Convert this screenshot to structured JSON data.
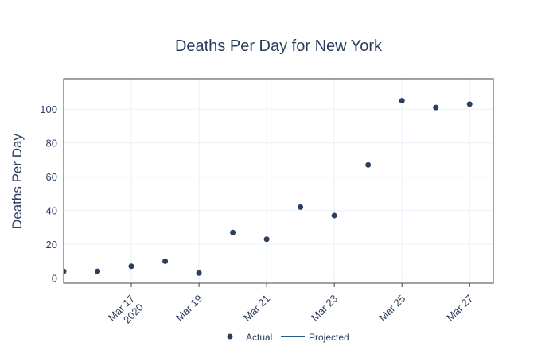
{
  "chart_data": {
    "type": "scatter",
    "title": "Deaths Per Day for New York",
    "xlabel": "",
    "ylabel": "Deaths Per Day",
    "x_axis_type": "date",
    "x": [
      "2020-03-15",
      "2020-03-16",
      "2020-03-17",
      "2020-03-18",
      "2020-03-19",
      "2020-03-20",
      "2020-03-21",
      "2020-03-22",
      "2020-03-23",
      "2020-03-24",
      "2020-03-25",
      "2020-03-26",
      "2020-03-27"
    ],
    "xlim": [
      "2020-03-15",
      "2020-03-27.7"
    ],
    "x_ticks": [
      {
        "date": "2020-03-17",
        "label": "Mar 17",
        "sublabel": "2020"
      },
      {
        "date": "2020-03-19",
        "label": "Mar 19",
        "sublabel": ""
      },
      {
        "date": "2020-03-21",
        "label": "Mar 21",
        "sublabel": ""
      },
      {
        "date": "2020-03-23",
        "label": "Mar 23",
        "sublabel": ""
      },
      {
        "date": "2020-03-25",
        "label": "Mar 25",
        "sublabel": ""
      },
      {
        "date": "2020-03-27",
        "label": "Mar 27",
        "sublabel": ""
      }
    ],
    "y_ticks": [
      0,
      20,
      40,
      60,
      80,
      100
    ],
    "ylim": [
      -3,
      118
    ],
    "series": [
      {
        "name": "Actual",
        "mode": "markers",
        "color": "#2a3f5f",
        "values": [
          4,
          4,
          7,
          10,
          3,
          27,
          23,
          42,
          37,
          67,
          105,
          101,
          103
        ]
      },
      {
        "name": "Projected",
        "mode": "lines",
        "color": "#1f5f8b",
        "values": []
      }
    ],
    "grid": true,
    "legend_position": "bottom-center"
  }
}
